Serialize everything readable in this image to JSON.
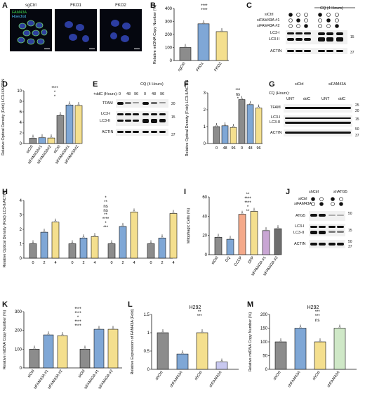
{
  "figure": {
    "panel_letters": [
      "A",
      "B",
      "C",
      "D",
      "E",
      "F",
      "G",
      "H",
      "I",
      "J",
      "K",
      "L",
      "M"
    ],
    "A": {
      "titles": [
        "sgCtrl",
        "FKO1",
        "FKO2"
      ],
      "stain_labels": [
        "FAM43A",
        "Hoechst"
      ]
    },
    "B": {
      "ylabel": "Relative mtDNA Copy Number (%)",
      "stars": [
        "****",
        "****"
      ]
    },
    "C": {
      "row_labels": [
        "siCtrl",
        "siFAM43A #1",
        "siFAM43A #2"
      ],
      "cq_label": "CQ (4 Hours)",
      "blot_labels": [
        "LC3-I",
        "LC3-II",
        "ACTIN"
      ],
      "kda": [
        "15",
        "37"
      ]
    },
    "D": {
      "ylabel": "Relative Optical Density (Fold) LC3-II/ACTIN",
      "cq_label": "CQ (4 Hours)",
      "stars": [
        "****",
        "*",
        "*"
      ]
    },
    "E": {
      "ddc_label": "+ddC (Hours):",
      "times": [
        "0",
        "48",
        "96",
        "0",
        "48",
        "96"
      ],
      "cq_label": "CQ (4 Hours)",
      "blot_labels": [
        "TFAM",
        "LC3-I",
        "LC3-II",
        "ACTIN"
      ],
      "kda": [
        "20",
        "15",
        "37"
      ]
    },
    "F": {
      "ylabel": "Relative Optical Density (Fold) LC3-II/ACTIN",
      "ddc_label": "+ddC (Hours):",
      "cq_label": "CQ (4 Hours)",
      "stars": [
        "***",
        "ns",
        "*"
      ]
    },
    "G": {
      "cq_label": "CQ (Hours):",
      "times": [
        "0",
        "2",
        "4",
        "0",
        "2",
        "4",
        "0",
        "2",
        "4",
        "0",
        "2",
        "4"
      ],
      "groups": [
        "siCtrl",
        "siFAM43A"
      ],
      "sub": [
        "UNT",
        "ddC",
        "UNT",
        "ddC"
      ],
      "blot_labels": [
        "TFAM",
        "LC3-I",
        "LC3-II",
        "ACTIN"
      ],
      "kda": [
        "25",
        "20",
        "15",
        "50",
        "37"
      ]
    },
    "H": {
      "ylabel": "Relative Optical Density (Fold) LC3-II/ACTIN",
      "cq_label": "CQ (Hours):",
      "stars": [
        "*",
        "**",
        "ns",
        "ns",
        "**",
        "****",
        "*",
        "***"
      ]
    },
    "I": {
      "ylabel": "Mitophagic Cells (%)",
      "stars": [
        "**",
        "****",
        "****",
        "*",
        "**"
      ]
    },
    "J": {
      "cols": [
        "shCtrl",
        "shATG5"
      ],
      "rows": [
        "siCtrl",
        "siFAM43A"
      ],
      "blot_labels": [
        "ATG5",
        "LC3-I",
        "LC3-II",
        "ACTIN"
      ],
      "kda": [
        "50",
        "15",
        "50",
        "37"
      ]
    },
    "K": {
      "ylabel": "Relative mtDNA Copy Number (%)",
      "stars": [
        "****",
        "****",
        "*",
        "****",
        "****"
      ]
    },
    "L": {
      "title": "H292",
      "ylabel": "Relative Expression of FAM43A (Fold)",
      "stars": [
        "**",
        "***"
      ]
    },
    "M": {
      "title": "H292",
      "ylabel": "Relative mtDNA Copy Number (%)",
      "stars": [
        "***",
        "***",
        "ns"
      ]
    }
  },
  "chart_data": [
    {
      "panel": "B",
      "type": "bar",
      "categories": [
        "sgCtrl",
        "FKO1",
        "FKO2"
      ],
      "values": [
        100,
        282,
        222
      ],
      "ylim": [
        0,
        400
      ],
      "yticks": [
        0,
        100,
        200,
        300,
        400
      ],
      "colors": [
        "#8c8c8c",
        "#7fa7d6",
        "#f4df8e"
      ]
    },
    {
      "panel": "D",
      "type": "bar",
      "categories": [
        "siCtrl",
        "siFAM43A#1",
        "siFAM43A#2",
        "siCtrl",
        "siFAM43A#1",
        "siFAM43A#2"
      ],
      "values": [
        1.0,
        1.1,
        1.05,
        5.3,
        7.3,
        7.2
      ],
      "ylim": [
        0,
        10
      ],
      "yticks": [
        0,
        2,
        4,
        6,
        8,
        10
      ],
      "colors": [
        "#8c8c8c",
        "#7fa7d6",
        "#f4df8e",
        "#8c8c8c",
        "#7fa7d6",
        "#f4df8e"
      ]
    },
    {
      "panel": "F",
      "type": "bar",
      "categories": [
        "0",
        "48",
        "96",
        "0",
        "48",
        "96"
      ],
      "values": [
        1.0,
        1.05,
        0.95,
        2.6,
        2.3,
        2.1
      ],
      "ylim": [
        0,
        3
      ],
      "yticks": [
        0,
        1,
        2,
        3
      ],
      "colors": [
        "#8c8c8c",
        "#7fa7d6",
        "#f4df8e",
        "#8c8c8c",
        "#7fa7d6",
        "#f4df8e"
      ]
    },
    {
      "panel": "H",
      "type": "bar",
      "categories": [
        "0",
        "2",
        "4",
        "0",
        "2",
        "4",
        "0",
        "2",
        "4",
        "0",
        "2",
        "4"
      ],
      "groups": [
        "UNT",
        "ddC",
        "UNT",
        "ddC"
      ],
      "values": [
        1.0,
        1.8,
        2.5,
        1.0,
        1.4,
        1.5,
        1.0,
        2.2,
        3.2,
        1.0,
        1.4,
        3.1
      ],
      "ylim": [
        0,
        4
      ],
      "yticks": [
        0,
        1,
        2,
        3,
        4
      ],
      "colors": [
        "#8c8c8c",
        "#7fa7d6",
        "#f4df8e",
        "#8c8c8c",
        "#7fa7d6",
        "#f4df8e",
        "#8c8c8c",
        "#7fa7d6",
        "#f4df8e",
        "#8c8c8c",
        "#7fa7d6",
        "#f4df8e"
      ]
    },
    {
      "panel": "I",
      "type": "bar",
      "categories": [
        "siCtrl",
        "CQ",
        "CCCP",
        "DFP",
        "siFAM43A #1",
        "siFAM43A #2"
      ],
      "values": [
        18,
        16,
        42,
        45,
        25,
        27
      ],
      "ylim": [
        0,
        60
      ],
      "yticks": [
        0,
        20,
        40,
        60
      ],
      "colors": [
        "#8c8c8c",
        "#7fa7d6",
        "#f4a98a",
        "#f4df8e",
        "#c9a6d4",
        "#6e6e6e"
      ]
    },
    {
      "panel": "K",
      "type": "bar",
      "categories": [
        "siCtrl",
        "siFAM43A #1",
        "siFAM43A #2",
        "siCtrl",
        "siFAM43A #1",
        "siFAM43A #2"
      ],
      "values": [
        100,
        176,
        172,
        100,
        206,
        206
      ],
      "ylim": [
        0,
        300
      ],
      "yticks": [
        0,
        100,
        200,
        300
      ],
      "colors": [
        "#8c8c8c",
        "#7fa7d6",
        "#f4df8e",
        "#8c8c8c",
        "#7fa7d6",
        "#f4df8e"
      ]
    },
    {
      "panel": "L",
      "type": "bar",
      "categories": [
        "shCtrl",
        "shFAM43A",
        "shCtrl",
        "shFAM43A"
      ],
      "values": [
        1.0,
        0.42,
        1.0,
        0.2
      ],
      "ylim": [
        0,
        1.5
      ],
      "yticks": [
        0.0,
        0.5,
        1.0,
        1.5
      ],
      "colors": [
        "#8c8c8c",
        "#7fa7d6",
        "#f4df8e",
        "#c8c8f0"
      ]
    },
    {
      "panel": "M",
      "type": "bar",
      "categories": [
        "shCtrl",
        "shFAM43A",
        "shCtrl",
        "shFAM43A"
      ],
      "values": [
        100,
        150,
        100,
        150
      ],
      "ylim": [
        0,
        200
      ],
      "yticks": [
        0,
        50,
        100,
        150,
        200
      ],
      "colors": [
        "#8c8c8c",
        "#7fa7d6",
        "#f4df8e",
        "#cfe8c7"
      ]
    }
  ]
}
